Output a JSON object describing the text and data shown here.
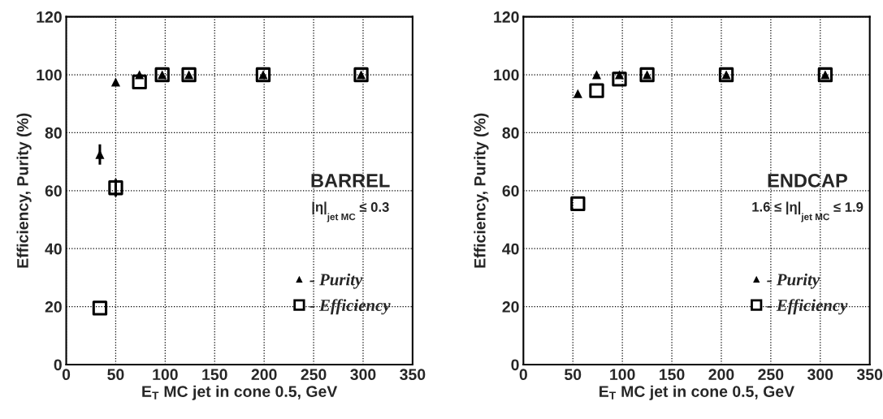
{
  "chart_data": [
    {
      "type": "scatter",
      "xlabel": "E$_{T}$ MC jet in cone 0.5, GeV",
      "ylabel": "Efficiency, Purity (%)",
      "annotations": [
        "BARREL",
        "|η|$_{jet MC}$ ≤ 0.3"
      ],
      "xlim": [
        0,
        350
      ],
      "xticks": [
        0,
        50,
        100,
        150,
        200,
        250,
        300,
        350
      ],
      "ylim": [
        0,
        120
      ],
      "yticks": [
        0,
        20,
        40,
        60,
        80,
        100,
        120
      ],
      "grid": true,
      "legend": "bottom right",
      "series": [
        {
          "name": "- Purity",
          "color": "#000000",
          "marker": "triangle",
          "x": [
            34,
            50,
            74,
            97,
            124,
            199,
            298
          ],
          "values": [
            72.5,
            97.5,
            100,
            100,
            100,
            100,
            100
          ],
          "errors": [
            [
              69,
              76
            ],
            null,
            null,
            null,
            null,
            null,
            null
          ]
        },
        {
          "name": "- Efficiency",
          "color": "#000000",
          "marker": "square",
          "x": [
            34,
            50,
            74,
            97,
            124,
            199,
            298
          ],
          "values": [
            19.5,
            61,
            97.5,
            100,
            100,
            100,
            100
          ],
          "errors": [
            null,
            [
              58,
              64
            ],
            null,
            null,
            null,
            null,
            null
          ]
        }
      ]
    },
    {
      "type": "scatter",
      "xlabel": "E$_{T}$ MC jet in cone 0.5, GeV",
      "ylabel": "Efficiency, Purity (%)",
      "annotations": [
        "ENDCAP",
        "1.6 ≤ |η|$_{jet MC}$ ≤ 1.9"
      ],
      "xlim": [
        0,
        350
      ],
      "xticks": [
        0,
        50,
        100,
        150,
        200,
        250,
        300,
        350
      ],
      "ylim": [
        0,
        120
      ],
      "yticks": [
        0,
        20,
        40,
        60,
        80,
        100,
        120
      ],
      "grid": true,
      "legend": "bottom right",
      "series": [
        {
          "name": "- Purity",
          "color": "#000000",
          "marker": "triangle",
          "x": [
            55,
            74,
            97,
            125,
            205,
            305
          ],
          "values": [
            93.5,
            100,
            100,
            100,
            100,
            100
          ]
        },
        {
          "name": "- Efficiency",
          "color": "#000000",
          "marker": "square",
          "x": [
            55,
            74,
            97,
            125,
            205,
            305
          ],
          "values": [
            55.5,
            94.5,
            98.5,
            100,
            100,
            100
          ]
        }
      ]
    }
  ]
}
